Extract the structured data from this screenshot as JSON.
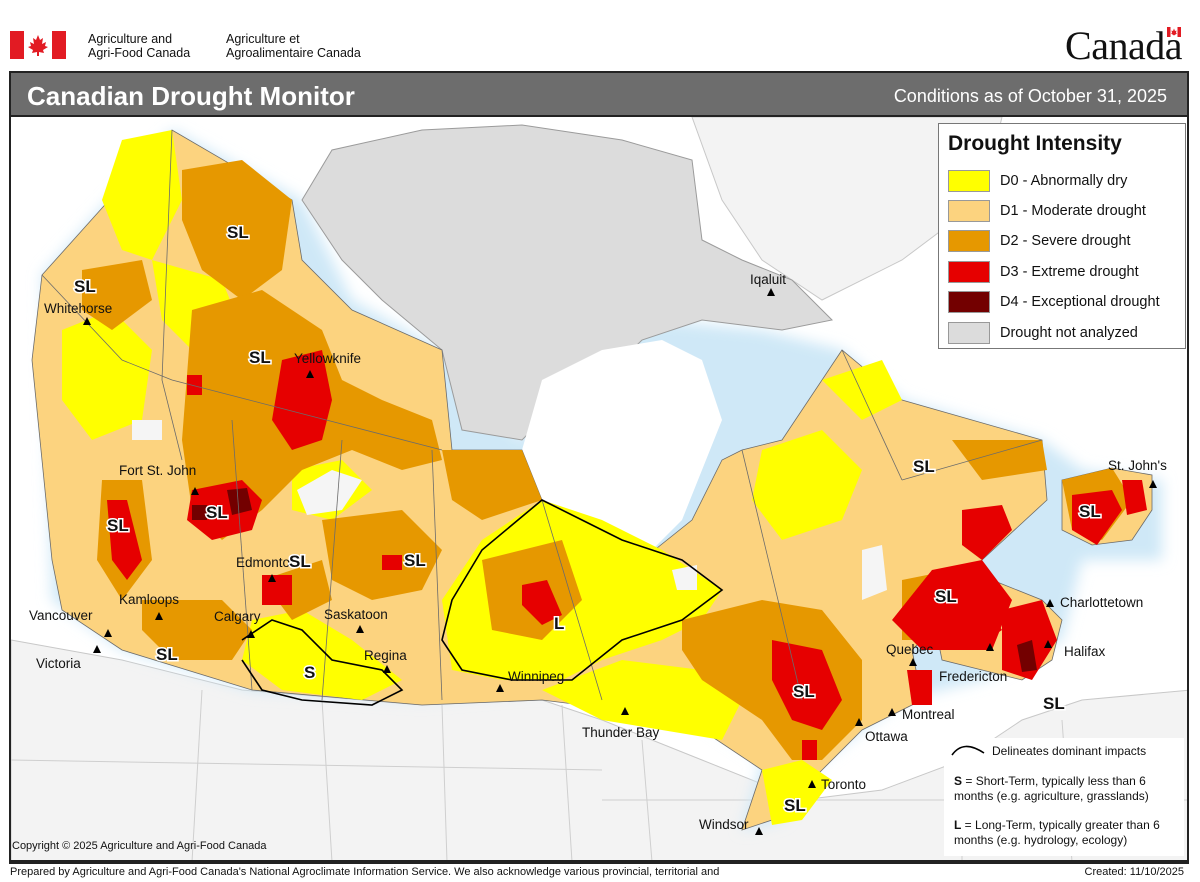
{
  "header": {
    "org_en_line1": "Agriculture and",
    "org_en_line2": "Agri-Food Canada",
    "org_fr_line1": "Agriculture et",
    "org_fr_line2": "Agroalimentaire Canada",
    "wordmark": "Canada"
  },
  "title": "Canadian Drought Monitor",
  "conditions": "Conditions as of October 31, 2025",
  "legend": {
    "title": "Drought Intensity",
    "items": [
      {
        "label": "D0 - Abnormally dry",
        "color": "#ffff00"
      },
      {
        "label": "D1 - Moderate drought",
        "color": "#fcd37f"
      },
      {
        "label": "D2 - Severe drought",
        "color": "#e69800"
      },
      {
        "label": "D3 - Extreme drought",
        "color": "#e60000"
      },
      {
        "label": "D4 - Exceptional drought",
        "color": "#730000"
      },
      {
        "label": "Drought not analyzed",
        "color": "#dcdcdc"
      }
    ]
  },
  "impacts": {
    "delineates": "Delineates dominant impacts",
    "short_code": "S",
    "short_text": " = Short-Term, typically less than 6 months (e.g. agriculture, grasslands)",
    "long_code": "L",
    "long_text": " = Long-Term, typically greater  than 6 months (e.g. hydrology, ecology)"
  },
  "cities": [
    {
      "name": "Whitehorse"
    },
    {
      "name": "Yellowknife"
    },
    {
      "name": "Iqaluit"
    },
    {
      "name": "Fort St. John"
    },
    {
      "name": "Edmonton"
    },
    {
      "name": "Kamloops"
    },
    {
      "name": "Vancouver"
    },
    {
      "name": "Victoria"
    },
    {
      "name": "Calgary"
    },
    {
      "name": "Saskatoon"
    },
    {
      "name": "Regina"
    },
    {
      "name": "Winnipeg"
    },
    {
      "name": "Thunder Bay"
    },
    {
      "name": "Windsor"
    },
    {
      "name": "Toronto"
    },
    {
      "name": "Ottawa"
    },
    {
      "name": "Montreal"
    },
    {
      "name": "Quebec"
    },
    {
      "name": "Fredericton"
    },
    {
      "name": "Halifax"
    },
    {
      "name": "Charlottetown"
    },
    {
      "name": "St. John's"
    }
  ],
  "impact_labels": [
    "SL",
    "SL",
    "SL",
    "SL",
    "SL",
    "SL",
    "SL",
    "SL",
    "SL",
    "SL",
    "SL",
    "SL",
    "SL",
    "S",
    "L",
    "SL"
  ],
  "copyright": "Copyright © 2025 Agriculture and Agri-Food Canada",
  "prepared": "Prepared by Agriculture and Agri-Food Canada's National Agroclimate Information Service.  We also acknowledge various provincial, territorial and",
  "created": "Created: 11/10/2025"
}
